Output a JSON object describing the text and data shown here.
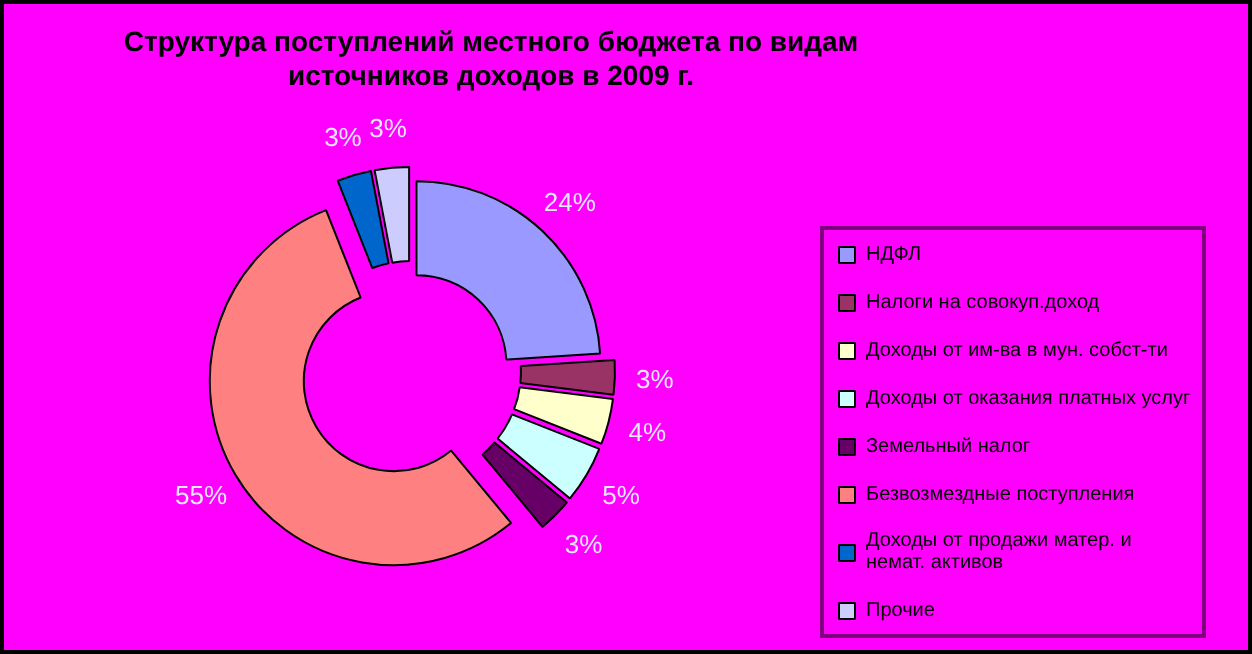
{
  "chart_data": {
    "type": "donut",
    "title": "Структура поступлений местного бюджета по видам источников доходов в 2009 г.",
    "categories": [
      "НДФЛ",
      "Налоги на совокуп.доход",
      "Доходы от им-ва в мун. собст-ти",
      "Доходы от оказания платных услуг",
      "Земельный налог",
      "Безвозмездные поступления",
      "Доходы от продажи матер. и немат. активов",
      "Прочие"
    ],
    "values": [
      24,
      3,
      4,
      5,
      3,
      55,
      3,
      3
    ],
    "colors": [
      "#9999ff",
      "#993366",
      "#ffffcc",
      "#ccffff",
      "#660066",
      "#ff8080",
      "#0066cc",
      "#ccccff"
    ],
    "value_labels": [
      "24%",
      "3%",
      "4%",
      "5%",
      "3%",
      "55%",
      "3%",
      "3%"
    ],
    "legend": "right"
  }
}
